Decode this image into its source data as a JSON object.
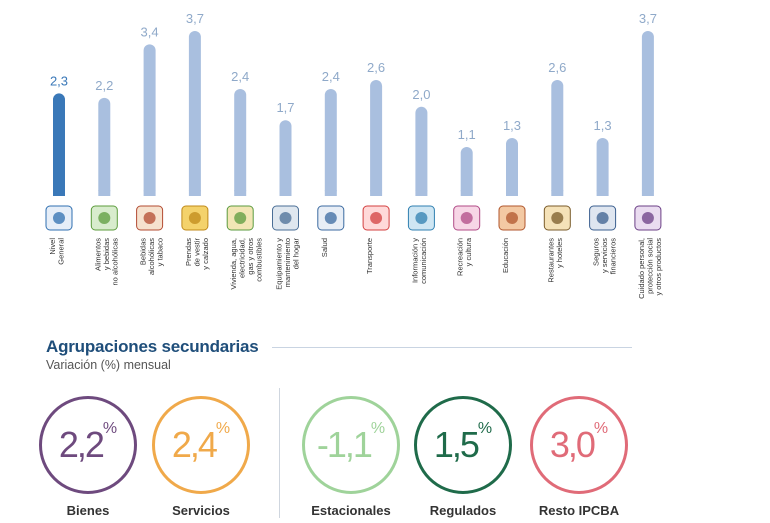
{
  "chart_data": {
    "type": "bar",
    "categories": [
      "Nivel General",
      "Alimentos y bebidas no alcohólicas",
      "Bebidas alcohólicas y tabaco",
      "Prendas de vestir y calzado",
      "Vivienda, agua, electricidad, gas y otros combustibles",
      "Equipamiento y mantenimiento del hogar",
      "Salud",
      "Transporte",
      "Información y comunicación",
      "Recreación y cultura",
      "Educación",
      "Restaurantes y hoteles",
      "Seguros y servicios financieros",
      "Cuidado personal, protección social y otros productos"
    ],
    "values": [
      2.3,
      2.2,
      3.4,
      3.7,
      2.4,
      1.7,
      2.4,
      2.6,
      2.0,
      1.1,
      1.3,
      2.6,
      1.3,
      3.7
    ],
    "value_labels": [
      "2,3",
      "2,2",
      "3,4",
      "3,7",
      "2,4",
      "1,7",
      "2,4",
      "2,6",
      "2,0",
      "1,1",
      "1,3",
      "2,6",
      "1,3",
      "3,7"
    ],
    "label_lines": [
      [
        "Nivel",
        "General"
      ],
      [
        "Alimentos",
        "y bebidas",
        "no alcohólicas"
      ],
      [
        "Bebidas",
        "alcohólicas",
        "y tabaco"
      ],
      [
        "Prendas",
        "de vestir",
        "y calzado"
      ],
      [
        "Vivienda, agua,",
        "electricidad,",
        "gas y otros",
        "combustibles"
      ],
      [
        "Equipamiento y",
        "mantenimiento",
        "del hogar"
      ],
      [
        "Salud"
      ],
      [
        "Transporte"
      ],
      [
        "Información y",
        "comunicación"
      ],
      [
        "Recreación",
        "y cultura"
      ],
      [
        "Educación"
      ],
      [
        "Restaurantes",
        "y hoteles"
      ],
      [
        "Seguros",
        "y servicios",
        "financieros"
      ],
      [
        "Cuidado personal,",
        "protección social",
        "y otros productos"
      ]
    ],
    "icons": [
      "ipc-ba-logo-icon",
      "food-basket-icon",
      "wine-bottle-icon",
      "clothing-icon",
      "house-icon",
      "appliance-icon",
      "doctor-icon",
      "car-icon",
      "computer-icon",
      "recreation-icon",
      "school-building-icon",
      "dining-icon",
      "bank-icon",
      "personal-care-icon"
    ],
    "highlight_index": 0,
    "colors": {
      "highlight": "#3a78b8",
      "bar": "#a9bfdf"
    }
  },
  "secondary": {
    "title": "Agrupaciones secundarias",
    "subtitle": "Variación (%) mensual",
    "items": [
      {
        "label": "Bienes",
        "value": "2,2",
        "unit": "%",
        "color": "#6e4a7e"
      },
      {
        "label": "Servicios",
        "value": "2,4",
        "unit": "%",
        "color": "#f0a94a"
      },
      {
        "label": "Estacionales",
        "value": "-1,1",
        "unit": "%",
        "color": "#9fd39a"
      },
      {
        "label": "Regulados",
        "value": "1,5",
        "unit": "%",
        "color": "#1f6b4a"
      },
      {
        "label": "Resto IPCBA",
        "value": "3,0",
        "unit": "%",
        "color": "#e06b78"
      }
    ]
  }
}
